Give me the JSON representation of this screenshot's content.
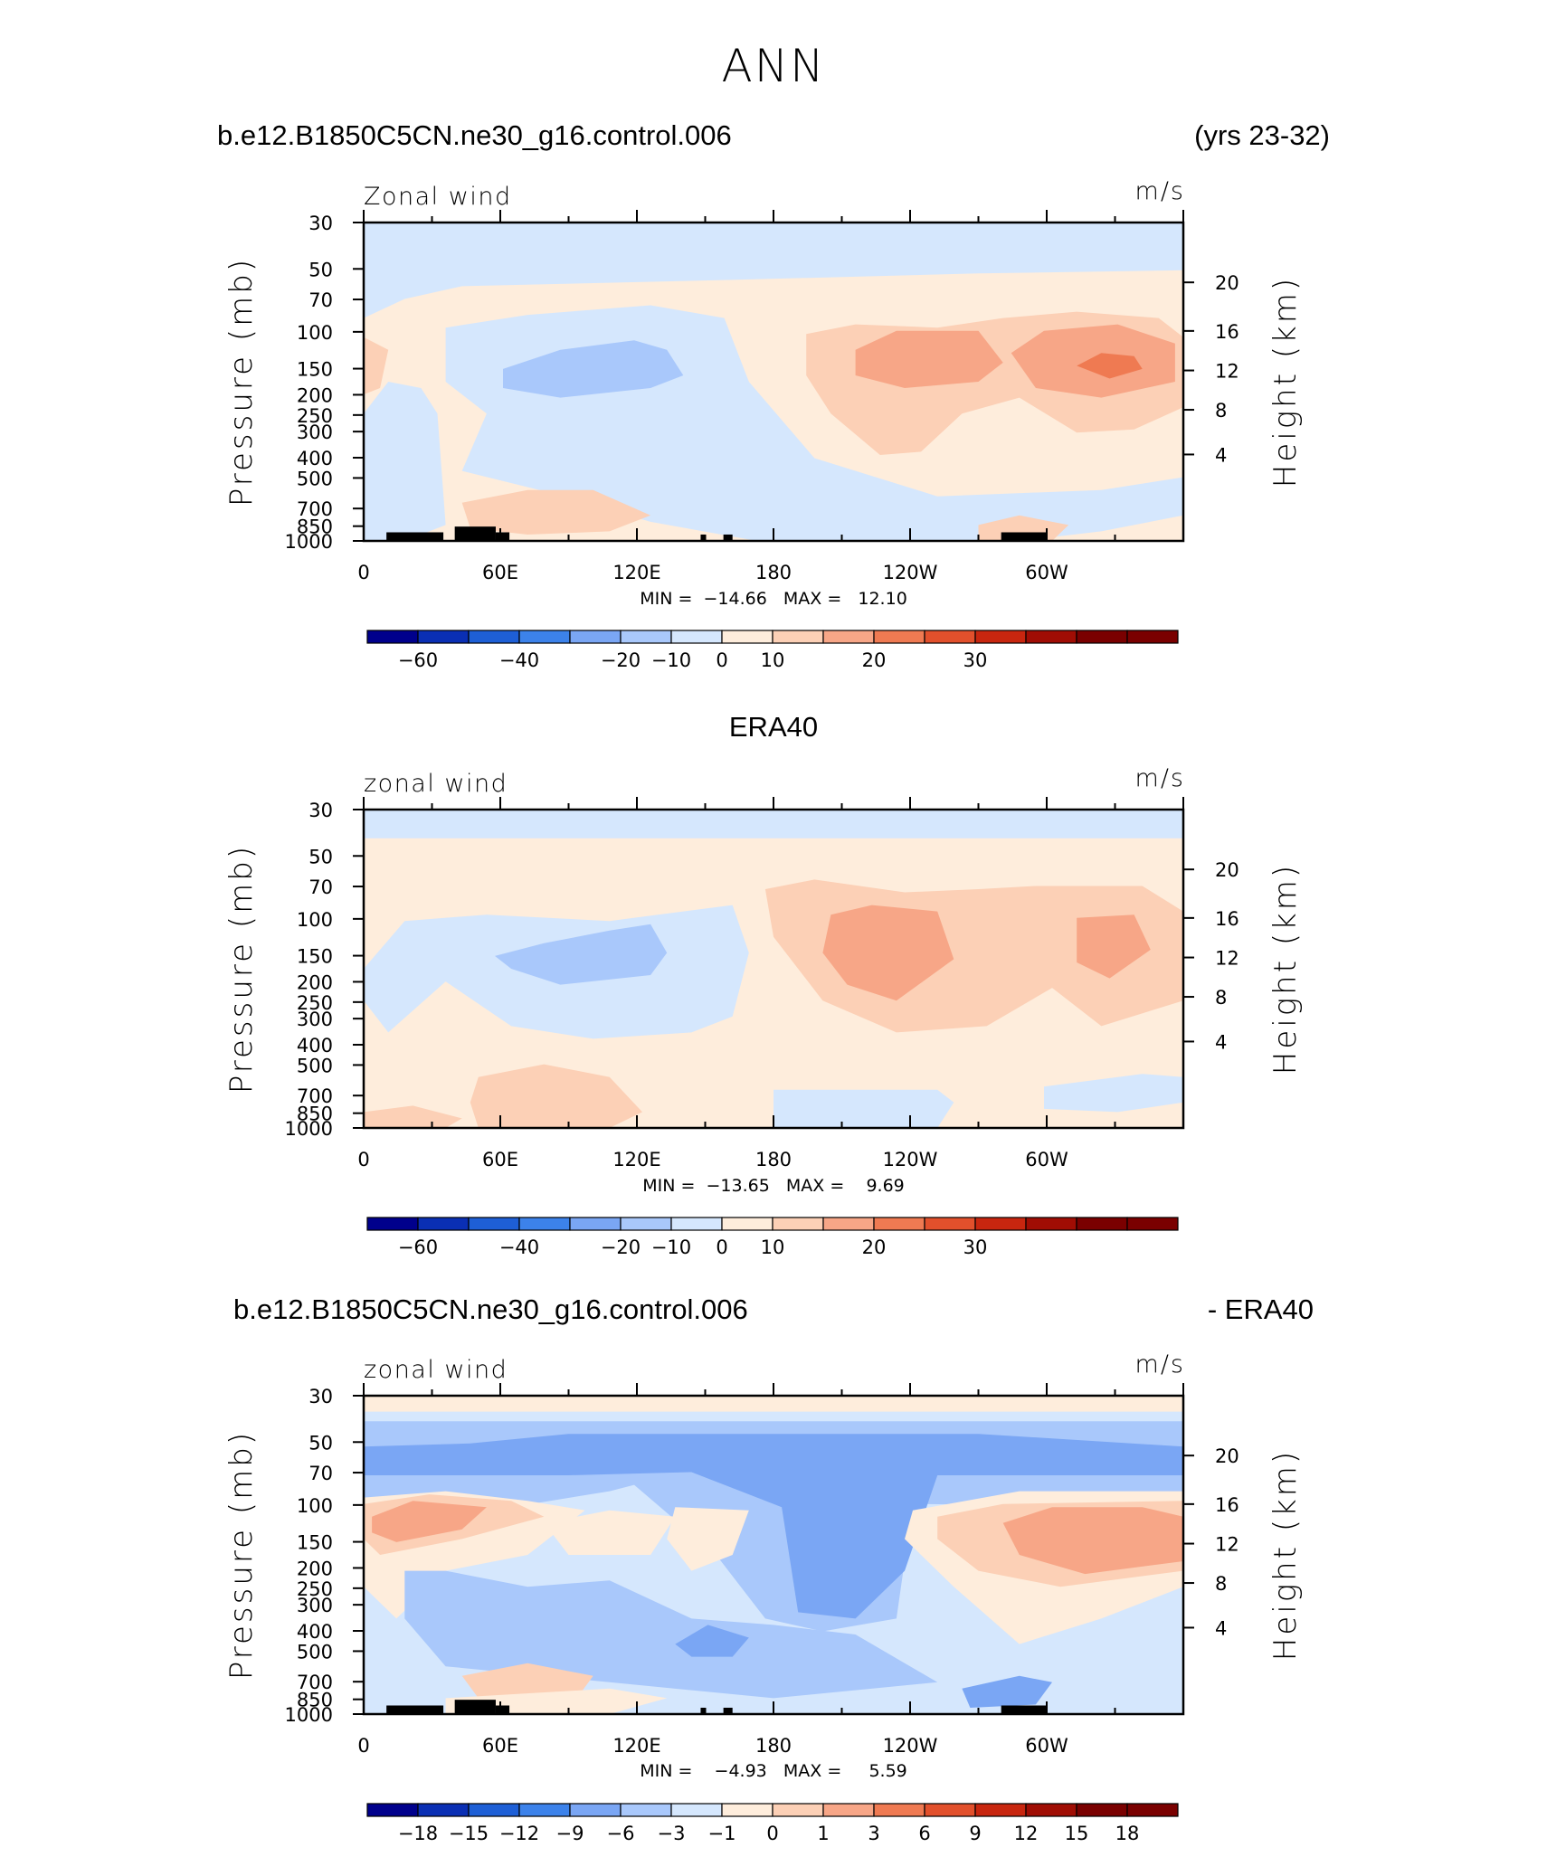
{
  "title": "ANN",
  "panels": [
    {
      "left_title": "b.e12.B1850C5CN.ne30_g16.control.006",
      "center_title": "",
      "right_title": "(yrs 23-32)",
      "field_label": "Zonal wind",
      "unit_label": "m/s",
      "stats": "MIN =  −14.66   MAX =   12.10"
    },
    {
      "left_title": "",
      "center_title": "ERA40",
      "right_title": "",
      "field_label": "zonal wind",
      "unit_label": "m/s",
      "stats": "MIN =  −13.65   MAX =    9.69"
    },
    {
      "left_title": "b.e12.B1850C5CN.ne30_g16.control.006",
      "center_title": "",
      "right_title": "- ERA40",
      "field_label": "zonal wind",
      "unit_label": "m/s",
      "stats": "MIN =    −4.93   MAX =     5.59"
    }
  ],
  "chart_data": [
    {
      "type": "heatmap",
      "title": "Zonal wind",
      "units": "m/s",
      "xlabel": "",
      "ylabel": "Pressure (mb)",
      "y2label": "Height (km)",
      "x_ticks": [
        "0",
        "60E",
        "120E",
        "180",
        "120W",
        "60W"
      ],
      "y_ticks": [
        "30",
        "50",
        "70",
        "100",
        "150",
        "200",
        "250",
        "300",
        "400",
        "500",
        "700",
        "850",
        "1000"
      ],
      "y2_ticks": [
        "20",
        "16",
        "12",
        "8",
        "4"
      ],
      "min": -14.66,
      "max": 12.1,
      "colorbar_labels": [
        "−60",
        "−40",
        "−20",
        "−10",
        "0",
        "10",
        "20",
        "30"
      ],
      "features": [
        {
          "name": "easterlies near 50 mb",
          "value": -5
        },
        {
          "name": "westerly maximum 60W-90W near 150 mb",
          "value": 12.1
        },
        {
          "name": "westerly maximum near 120W at 150 mb",
          "value": 10
        },
        {
          "name": "easterly minimum 120E-150E near 150 mb",
          "value": -14.66
        }
      ]
    },
    {
      "type": "heatmap",
      "title": "zonal wind",
      "units": "m/s",
      "xlabel": "",
      "ylabel": "Pressure (mb)",
      "y2label": "Height (km)",
      "x_ticks": [
        "0",
        "60E",
        "120E",
        "180",
        "120W",
        "60W"
      ],
      "y_ticks": [
        "30",
        "50",
        "70",
        "100",
        "150",
        "200",
        "250",
        "300",
        "400",
        "500",
        "700",
        "850",
        "1000"
      ],
      "y2_ticks": [
        "20",
        "16",
        "12",
        "8",
        "4"
      ],
      "min": -13.65,
      "max": 9.69,
      "colorbar_labels": [
        "−60",
        "−40",
        "−20",
        "−10",
        "0",
        "10",
        "20",
        "30"
      ],
      "features": [
        {
          "name": "westerly maximum near 120W at 150 mb",
          "value": 9.69
        },
        {
          "name": "easterly minimum 90E-150E near 150 mb",
          "value": -13.65
        }
      ]
    },
    {
      "type": "heatmap",
      "title": "zonal wind",
      "units": "m/s",
      "xlabel": "",
      "ylabel": "Pressure (mb)",
      "y2label": "Height (km)",
      "x_ticks": [
        "0",
        "60E",
        "120E",
        "180",
        "120W",
        "60W"
      ],
      "y_ticks": [
        "30",
        "50",
        "70",
        "100",
        "150",
        "200",
        "250",
        "300",
        "400",
        "500",
        "700",
        "850",
        "1000"
      ],
      "y2_ticks": [
        "20",
        "16",
        "12",
        "8",
        "4"
      ],
      "min": -4.93,
      "max": 5.59,
      "colorbar_labels": [
        "−18",
        "−15",
        "−12",
        "−9",
        "−6",
        "−3",
        "−1",
        "0",
        "1",
        "3",
        "6",
        "9",
        "12",
        "15",
        "18"
      ],
      "features": [
        {
          "name": "negative band near 50-70 mb",
          "value": -4
        },
        {
          "name": "negative tongue 170E-150W down to 400 mb",
          "value": -4.93
        },
        {
          "name": "positive region 90W-0 near 150 mb",
          "value": 5.59
        }
      ]
    }
  ],
  "colors": {
    "palette": [
      "#00008c",
      "#0a2fb4",
      "#1e5fd6",
      "#3c82ea",
      "#7aa6f4",
      "#a9c8fb",
      "#d5e7fd",
      "#feeddc",
      "#fcd0b6",
      "#f7a687",
      "#ef7a52",
      "#e2502c",
      "#c8260f",
      "#a00d04",
      "#7a0000"
    ],
    "background": "#ffffff",
    "axis": "#000000"
  }
}
